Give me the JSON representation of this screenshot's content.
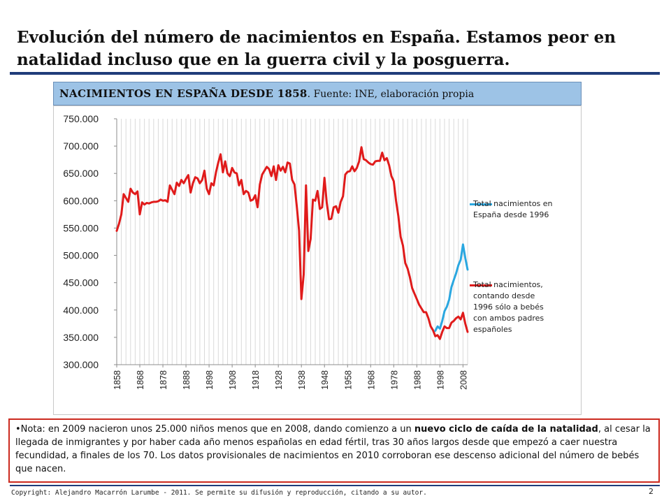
{
  "page": {
    "title": "Evolución del número de nacimientos en España. Estamos peor en natalidad incluso que en la guerra civil y la posguerra.",
    "chart_header_bold": "NACIMIENTOS EN ESPAÑA DESDE 1858",
    "chart_header_rest": ". Fuente: INE, elaboración propia",
    "note": {
      "bullet": "•",
      "part1": "Nota: en 2009 nacieron unos 25.000 niños menos que en 2008, dando comienzo a un ",
      "bold": "nuevo ciclo de caída de la natalidad",
      "part2": ", al cesar la llegada de inmigrantes y por haber cada año menos españolas en edad fértil, tras 30 años largos desde que empezó a caer nuestra fecundidad, a finales de los 70. Los datos provisionales de nacimientos en 2010 corroboran ese descenso adicional del número de bebés que nacen."
    },
    "footer": "Copyright: Alejandro Macarrón Larumbe - 2011. Se permite su difusión y reproducción, citando a su autor.",
    "page_number": "2"
  },
  "chart_data": {
    "type": "line",
    "title": "",
    "xlabel": "",
    "ylabel": "",
    "xlim": [
      1858,
      2010
    ],
    "ylim": [
      300000,
      750000
    ],
    "yticks": [
      300000,
      350000,
      400000,
      450000,
      500000,
      550000,
      600000,
      650000,
      700000,
      750000
    ],
    "ytick_labels": [
      "300.000",
      "350.000",
      "400.000",
      "450.000",
      "500.000",
      "550.000",
      "600.000",
      "650.000",
      "700.000",
      "750.000"
    ],
    "xticks": [
      1858,
      1868,
      1878,
      1888,
      1898,
      1908,
      1918,
      1928,
      1938,
      1948,
      1958,
      1968,
      1978,
      1988,
      1998,
      2008
    ],
    "xtick_labels": [
      "1858",
      "1868",
      "1878",
      "1888",
      "1898",
      "1908",
      "1918",
      "1928",
      "1938",
      "1948",
      "1958",
      "1968",
      "1978",
      "1988",
      "1998",
      "2008"
    ],
    "grid": "vertical",
    "legend": "right",
    "series": [
      {
        "name": "Total nacimientos en España desde 1996",
        "color": "#2aa7e0",
        "points": [
          [
            1996,
            362000
          ],
          [
            1997,
            370000
          ],
          [
            1998,
            366000
          ],
          [
            1999,
            380000
          ],
          [
            2000,
            398000
          ],
          [
            2001,
            406000
          ],
          [
            2002,
            419000
          ],
          [
            2003,
            442000
          ],
          [
            2004,
            455000
          ],
          [
            2005,
            467000
          ],
          [
            2006,
            482000
          ],
          [
            2007,
            492000
          ],
          [
            2008,
            520000
          ],
          [
            2009,
            495000
          ],
          [
            2010,
            474000
          ]
        ]
      },
      {
        "name": "Total nacimientos, contando desde 1996 sólo a bebés con ambos padres españoles",
        "color": "#e01b1b",
        "points": [
          [
            1858,
            545000
          ],
          [
            1859,
            558000
          ],
          [
            1860,
            575000
          ],
          [
            1861,
            612000
          ],
          [
            1862,
            605000
          ],
          [
            1863,
            598000
          ],
          [
            1864,
            622000
          ],
          [
            1865,
            615000
          ],
          [
            1866,
            612000
          ],
          [
            1867,
            617000
          ],
          [
            1868,
            575000
          ],
          [
            1869,
            597000
          ],
          [
            1870,
            593000
          ],
          [
            1871,
            596000
          ],
          [
            1872,
            595000
          ],
          [
            1873,
            597000
          ],
          [
            1874,
            598000
          ],
          [
            1875,
            598000
          ],
          [
            1876,
            599000
          ],
          [
            1877,
            602000
          ],
          [
            1878,
            600000
          ],
          [
            1879,
            601000
          ],
          [
            1880,
            598000
          ],
          [
            1881,
            628000
          ],
          [
            1882,
            620000
          ],
          [
            1883,
            612000
          ],
          [
            1884,
            633000
          ],
          [
            1885,
            627000
          ],
          [
            1886,
            638000
          ],
          [
            1887,
            632000
          ],
          [
            1888,
            640000
          ],
          [
            1889,
            647000
          ],
          [
            1890,
            615000
          ],
          [
            1891,
            632000
          ],
          [
            1892,
            643000
          ],
          [
            1893,
            641000
          ],
          [
            1894,
            632000
          ],
          [
            1895,
            638000
          ],
          [
            1896,
            655000
          ],
          [
            1897,
            622000
          ],
          [
            1898,
            612000
          ],
          [
            1899,
            632000
          ],
          [
            1900,
            628000
          ],
          [
            1901,
            652000
          ],
          [
            1902,
            670000
          ],
          [
            1903,
            685000
          ],
          [
            1904,
            652000
          ],
          [
            1905,
            672000
          ],
          [
            1906,
            650000
          ],
          [
            1907,
            645000
          ],
          [
            1908,
            660000
          ],
          [
            1909,
            652000
          ],
          [
            1910,
            650000
          ],
          [
            1911,
            628000
          ],
          [
            1912,
            638000
          ],
          [
            1913,
            612000
          ],
          [
            1914,
            618000
          ],
          [
            1915,
            615000
          ],
          [
            1916,
            600000
          ],
          [
            1917,
            602000
          ],
          [
            1918,
            610000
          ],
          [
            1919,
            588000
          ],
          [
            1920,
            630000
          ],
          [
            1921,
            648000
          ],
          [
            1922,
            655000
          ],
          [
            1923,
            662000
          ],
          [
            1924,
            658000
          ],
          [
            1925,
            645000
          ],
          [
            1926,
            663000
          ],
          [
            1927,
            638000
          ],
          [
            1928,
            665000
          ],
          [
            1929,
            655000
          ],
          [
            1930,
            662000
          ],
          [
            1931,
            652000
          ],
          [
            1932,
            670000
          ],
          [
            1933,
            668000
          ],
          [
            1934,
            638000
          ],
          [
            1935,
            630000
          ],
          [
            1936,
            590000
          ],
          [
            1937,
            545000
          ],
          [
            1938,
            420000
          ],
          [
            1939,
            465000
          ],
          [
            1940,
            628000
          ],
          [
            1941,
            508000
          ],
          [
            1942,
            530000
          ],
          [
            1943,
            602000
          ],
          [
            1944,
            600000
          ],
          [
            1945,
            618000
          ],
          [
            1946,
            585000
          ],
          [
            1947,
            588000
          ],
          [
            1948,
            642000
          ],
          [
            1949,
            596000
          ],
          [
            1950,
            566000
          ],
          [
            1951,
            567000
          ],
          [
            1952,
            588000
          ],
          [
            1953,
            590000
          ],
          [
            1954,
            578000
          ],
          [
            1955,
            598000
          ],
          [
            1956,
            608000
          ],
          [
            1957,
            648000
          ],
          [
            1958,
            653000
          ],
          [
            1959,
            654000
          ],
          [
            1960,
            663000
          ],
          [
            1961,
            654000
          ],
          [
            1962,
            660000
          ],
          [
            1963,
            672000
          ],
          [
            1964,
            698000
          ],
          [
            1965,
            676000
          ],
          [
            1966,
            674000
          ],
          [
            1967,
            670000
          ],
          [
            1968,
            667000
          ],
          [
            1969,
            666000
          ],
          [
            1970,
            672000
          ],
          [
            1971,
            673000
          ],
          [
            1972,
            673000
          ],
          [
            1973,
            688000
          ],
          [
            1974,
            674000
          ],
          [
            1975,
            678000
          ],
          [
            1976,
            665000
          ],
          [
            1977,
            645000
          ],
          [
            1978,
            636000
          ],
          [
            1979,
            600000
          ],
          [
            1980,
            572000
          ],
          [
            1981,
            534000
          ],
          [
            1982,
            518000
          ],
          [
            1983,
            486000
          ],
          [
            1984,
            476000
          ],
          [
            1985,
            460000
          ],
          [
            1986,
            440000
          ],
          [
            1987,
            430000
          ],
          [
            1988,
            420000
          ],
          [
            1989,
            410000
          ],
          [
            1990,
            403000
          ],
          [
            1991,
            396000
          ],
          [
            1992,
            396000
          ],
          [
            1993,
            385000
          ],
          [
            1994,
            370000
          ],
          [
            1995,
            363000
          ],
          [
            1996,
            352000
          ],
          [
            1997,
            354000
          ],
          [
            1998,
            347000
          ],
          [
            1999,
            360000
          ],
          [
            2000,
            370000
          ],
          [
            2001,
            367000
          ],
          [
            2002,
            367000
          ],
          [
            2003,
            377000
          ],
          [
            2004,
            380000
          ],
          [
            2005,
            385000
          ],
          [
            2006,
            388000
          ],
          [
            2007,
            383000
          ],
          [
            2008,
            395000
          ],
          [
            2009,
            375000
          ],
          [
            2010,
            360000
          ]
        ]
      }
    ]
  }
}
